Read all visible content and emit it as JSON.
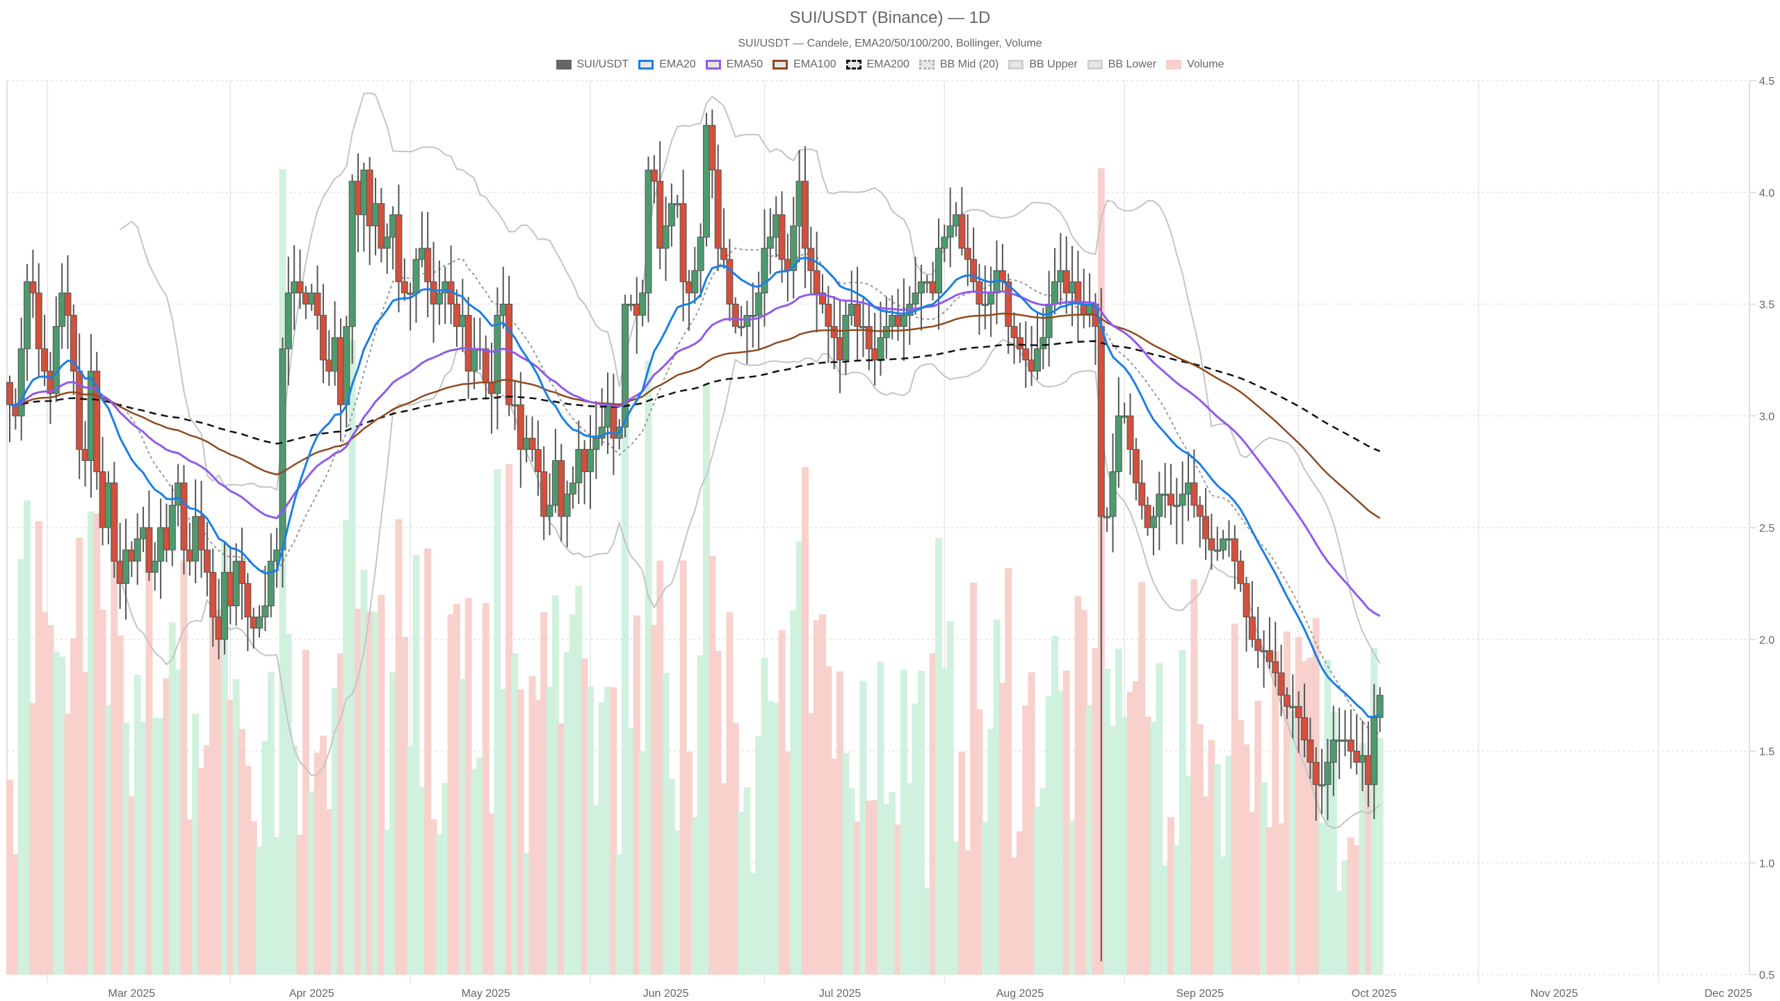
{
  "header": {
    "title": "SUI/USDT (Binance) — 1D",
    "subtitle": "SUI/USDT — Candele, EMA20/50/100/200, Bollinger, Volume"
  },
  "legend": [
    {
      "label": "SUI/USDT",
      "swatch_fill": "#666666",
      "swatch_border": "#666666",
      "border_style": "solid"
    },
    {
      "label": "EMA20",
      "swatch_fill": "#e6e6e6",
      "swatch_border": "#1a7fe6",
      "border_style": "solid"
    },
    {
      "label": "EMA50",
      "swatch_fill": "#e6e6e6",
      "swatch_border": "#8f5bea",
      "border_style": "solid"
    },
    {
      "label": "EMA100",
      "swatch_fill": "#e6e6e6",
      "swatch_border": "#8f4a1f",
      "border_style": "solid"
    },
    {
      "label": "EMA200",
      "swatch_fill": "#e6e6e6",
      "swatch_border": "#111111",
      "border_style": "dashed"
    },
    {
      "label": "BB Mid (20)",
      "swatch_fill": "#e6e6e6",
      "swatch_border": "#aaaaaa",
      "border_style": "dotted"
    },
    {
      "label": "BB Upper",
      "swatch_fill": "#e6e6e6",
      "swatch_border": "#d0d0d0",
      "border_style": "solid"
    },
    {
      "label": "BB Lower",
      "swatch_fill": "#e6e6e6",
      "swatch_border": "#d0d0d0",
      "border_style": "solid"
    },
    {
      "label": "Volume",
      "swatch_fill": "#f8cfca",
      "swatch_border": "#f8cfca",
      "border_style": "solid"
    }
  ],
  "colors": {
    "up": "#4e9a6e",
    "down": "#d2503c",
    "wick": "#555555",
    "ema20": "#1a7fe6",
    "ema50": "#8f5bea",
    "ema100": "#8f4a1f",
    "ema200": "#111111",
    "bb_mid": "#999999",
    "bb_band": "#c4c4c4",
    "vol_up": "#cdf0dc",
    "vol_down": "#f8cfca",
    "grid": "#e4e4e4"
  },
  "chart_data": {
    "type": "candlestick",
    "title": "SUI/USDT (Binance) — 1D",
    "subtitle": "SUI/USDT — Candele, EMA20/50/100/200, Bollinger, Volume",
    "xlabel": "",
    "ylabel": "",
    "y_axis_position": "right",
    "ylim": [
      0.5,
      4.5
    ],
    "y_ticks": [
      "0.5",
      "1.0",
      "1.5",
      "2.0",
      "2.5",
      "3.0",
      "3.5",
      "4.0",
      "4.5"
    ],
    "x_ticks": [
      "Mar 2025",
      "Apr 2025",
      "May 2025",
      "Jun 2025",
      "Jul 2025",
      "Aug 2025",
      "Sep 2025",
      "Oct 2025",
      "Nov 2025",
      "Dec 2025"
    ],
    "x_tick_day_index": [
      21,
      52,
      82,
      113,
      143,
      174,
      205,
      235,
      266,
      296
    ],
    "start_date": "2025-02-08",
    "legend_position": "top",
    "grid": true,
    "series_names": [
      "SUI/USDT",
      "EMA20",
      "EMA50",
      "EMA100",
      "EMA200",
      "BB Mid (20)",
      "BB Upper",
      "BB Lower",
      "Volume"
    ],
    "closes": [
      3.05,
      3.0,
      3.3,
      3.6,
      3.55,
      3.3,
      3.2,
      3.1,
      3.4,
      3.55,
      3.45,
      3.2,
      2.85,
      2.8,
      3.2,
      2.75,
      2.5,
      2.7,
      2.35,
      2.25,
      2.4,
      2.35,
      2.45,
      2.5,
      2.3,
      2.35,
      2.5,
      2.4,
      2.6,
      2.7,
      2.4,
      2.35,
      2.55,
      2.4,
      2.3,
      2.1,
      2.0,
      2.3,
      2.15,
      2.35,
      2.25,
      2.1,
      2.05,
      2.1,
      2.15,
      2.35,
      2.4,
      3.3,
      3.55,
      3.6,
      3.55,
      3.5,
      3.55,
      3.45,
      3.25,
      3.2,
      3.35,
      3.05,
      3.4,
      4.05,
      3.9,
      4.1,
      3.85,
      3.95,
      3.75,
      3.8,
      3.9,
      3.6,
      3.55,
      3.55,
      3.7,
      3.75,
      3.6,
      3.5,
      3.55,
      3.6,
      3.5,
      3.4,
      3.45,
      3.2,
      3.3,
      3.3,
      3.15,
      3.1,
      3.45,
      3.5,
      3.05,
      3.05,
      2.85,
      2.9,
      2.85,
      2.75,
      2.55,
      2.6,
      2.8,
      2.55,
      2.65,
      2.7,
      2.85,
      2.75,
      2.85,
      2.9,
      2.95,
      3.05,
      2.9,
      2.95,
      3.5,
      3.5,
      3.45,
      3.55,
      4.1,
      4.05,
      3.75,
      3.85,
      3.95,
      3.95,
      3.6,
      3.55,
      3.65,
      3.8,
      4.3,
      4.1,
      3.75,
      3.7,
      3.5,
      3.4,
      3.4,
      3.45,
      3.45,
      3.55,
      3.75,
      3.8,
      3.9,
      3.7,
      3.65,
      3.85,
      4.05,
      3.75,
      3.65,
      3.55,
      3.5,
      3.4,
      3.35,
      3.25,
      3.45,
      3.5,
      3.4,
      3.4,
      3.3,
      3.25,
      3.35,
      3.4,
      3.45,
      3.4,
      3.45,
      3.5,
      3.55,
      3.6,
      3.6,
      3.55,
      3.75,
      3.8,
      3.85,
      3.9,
      3.75,
      3.7,
      3.6,
      3.5,
      3.5,
      3.55,
      3.65,
      3.6,
      3.4,
      3.35,
      3.3,
      3.25,
      3.2,
      3.3,
      3.35,
      3.5,
      3.6,
      3.65,
      3.55,
      3.6,
      3.5,
      3.45,
      3.5,
      3.4,
      2.55,
      2.55,
      2.75,
      3.0,
      3.0,
      2.85,
      2.7,
      2.6,
      2.5,
      2.55,
      2.65,
      2.65,
      2.6,
      2.6,
      2.65,
      2.7,
      2.6,
      2.55,
      2.45,
      2.4,
      2.4,
      2.45,
      2.45,
      2.35,
      2.25,
      2.1,
      2.0,
      1.95,
      1.95,
      1.9,
      1.85,
      1.75,
      1.7,
      1.7,
      1.65,
      1.55,
      1.45,
      1.35,
      1.35,
      1.45,
      1.55,
      1.55,
      1.55,
      1.5,
      1.45,
      1.48,
      1.35,
      1.65,
      1.75
    ],
    "volume_scale_note": "Volume drawn as translucent bars behind price, heights in pixels relative to plot"
  },
  "axis": {
    "y_ticks": [
      "4.5",
      "4.0",
      "3.5",
      "3.0",
      "2.5",
      "2.0",
      "1.5",
      "1.0",
      "0.5"
    ],
    "x_ticks": [
      "Mar 2025",
      "Apr 2025",
      "May 2025",
      "Jun 2025",
      "Jul 2025",
      "Aug 2025",
      "Sep 2025",
      "Oct 2025",
      "Nov 2025",
      "Dec 2025"
    ]
  }
}
